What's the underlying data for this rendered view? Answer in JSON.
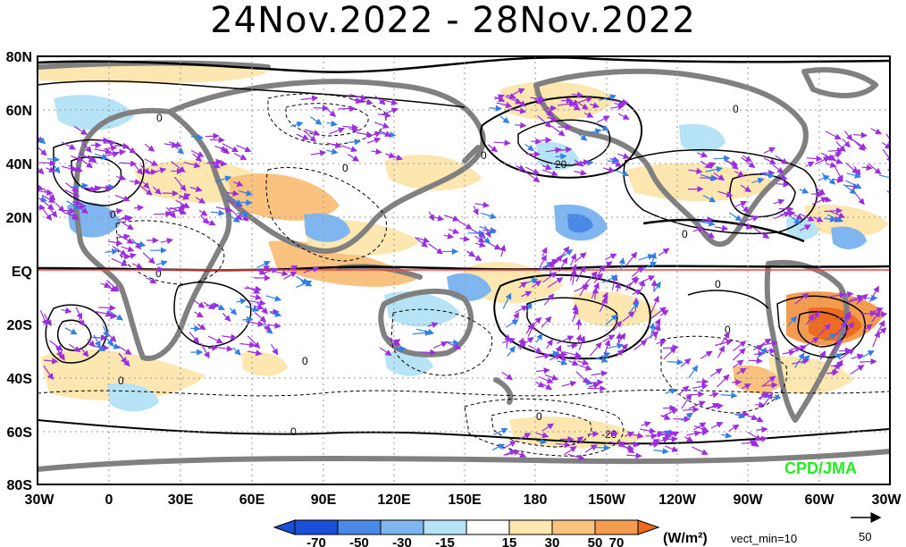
{
  "title": "24Nov.2022  -  28Nov.2022",
  "latitude_labels": [
    "80N",
    "60N",
    "40N",
    "20N",
    "EQ",
    "20S",
    "40S",
    "60S",
    "80S"
  ],
  "longitude_labels": [
    "30W",
    "0",
    "30E",
    "60E",
    "90E",
    "120E",
    "150E",
    "180",
    "150W",
    "120W",
    "90W",
    "60W",
    "30W"
  ],
  "contour_labels": {
    "zero": "0",
    "minus_twenty": "-20",
    "twenty": "20"
  },
  "credit": "CPD/JMA",
  "colorbar": {
    "tick_labels": [
      "-70",
      "-50",
      "-30",
      "-15",
      "15",
      "30",
      "50",
      "70"
    ],
    "units": "(W/m²)",
    "vector_note": "vect_min=10",
    "reference_vector_value": "50",
    "colors": [
      "#1a4fd8",
      "#4a8ae6",
      "#7fb6ef",
      "#b6e4f6",
      "#ffffff",
      "#fde7b0",
      "#f9c27e",
      "#f39b4f",
      "#ee6a1e"
    ]
  },
  "colors": {
    "land": "#808080",
    "equator_line": "#ff3b3b",
    "vectors_purple": "#9b2fe0",
    "vectors_blue": "#2f7fe6",
    "vectors_green": "#33d36a",
    "credit": "#22ee22"
  }
}
